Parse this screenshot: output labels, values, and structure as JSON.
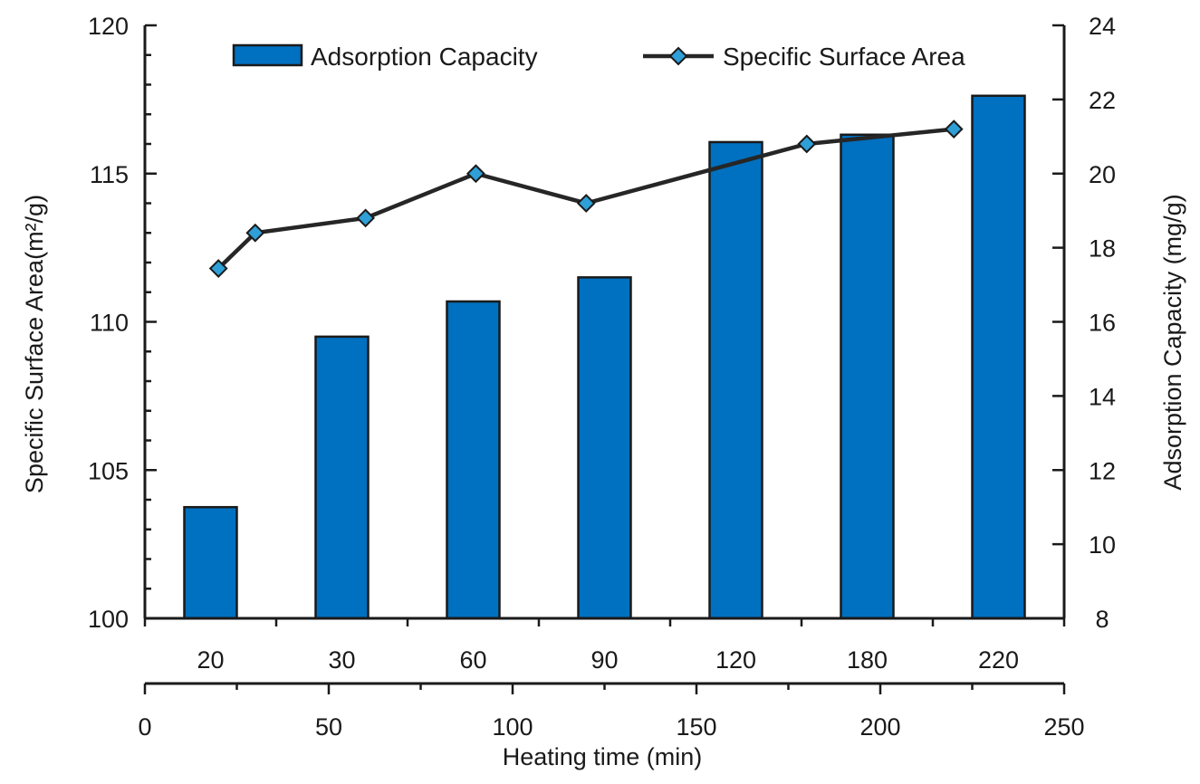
{
  "chart_data": {
    "type": "bar+line",
    "categories": [
      "20",
      "30",
      "60",
      "90",
      "120",
      "180",
      "220"
    ],
    "series": [
      {
        "name": "Adsorption Capacity",
        "type": "bar",
        "axis": "right",
        "values": [
          11.0,
          15.6,
          16.55,
          17.2,
          20.85,
          21.05,
          22.1
        ],
        "color": "#0070c0"
      },
      {
        "name": "Specific Surface Area",
        "type": "line",
        "axis": "left",
        "x": [
          20,
          30,
          60,
          90,
          120,
          180,
          220
        ],
        "values": [
          111.8,
          113.0,
          113.5,
          115.0,
          114.0,
          116.0,
          116.5
        ],
        "color": "#262626",
        "marker_color": "#2f9fd8"
      }
    ],
    "left_axis": {
      "label": "Specific Surface Area(m²/g)",
      "range": [
        100,
        120
      ],
      "ticks": [
        "100",
        "105",
        "110",
        "115",
        "120"
      ]
    },
    "right_axis": {
      "label": "Adsorption Capacity (mg/g)",
      "range": [
        8,
        24
      ],
      "ticks": [
        "8",
        "10",
        "12",
        "14",
        "16",
        "18",
        "20",
        "22",
        "24"
      ]
    },
    "bottom_axis": {
      "label": "Heating time (min)",
      "range": [
        0,
        250
      ],
      "ticks": [
        "0",
        "50",
        "100",
        "150",
        "200",
        "250"
      ]
    },
    "legend": {
      "placement": "top",
      "entries": [
        "Adsorption Capacity",
        "Specific Surface Area"
      ]
    },
    "grid": false
  }
}
